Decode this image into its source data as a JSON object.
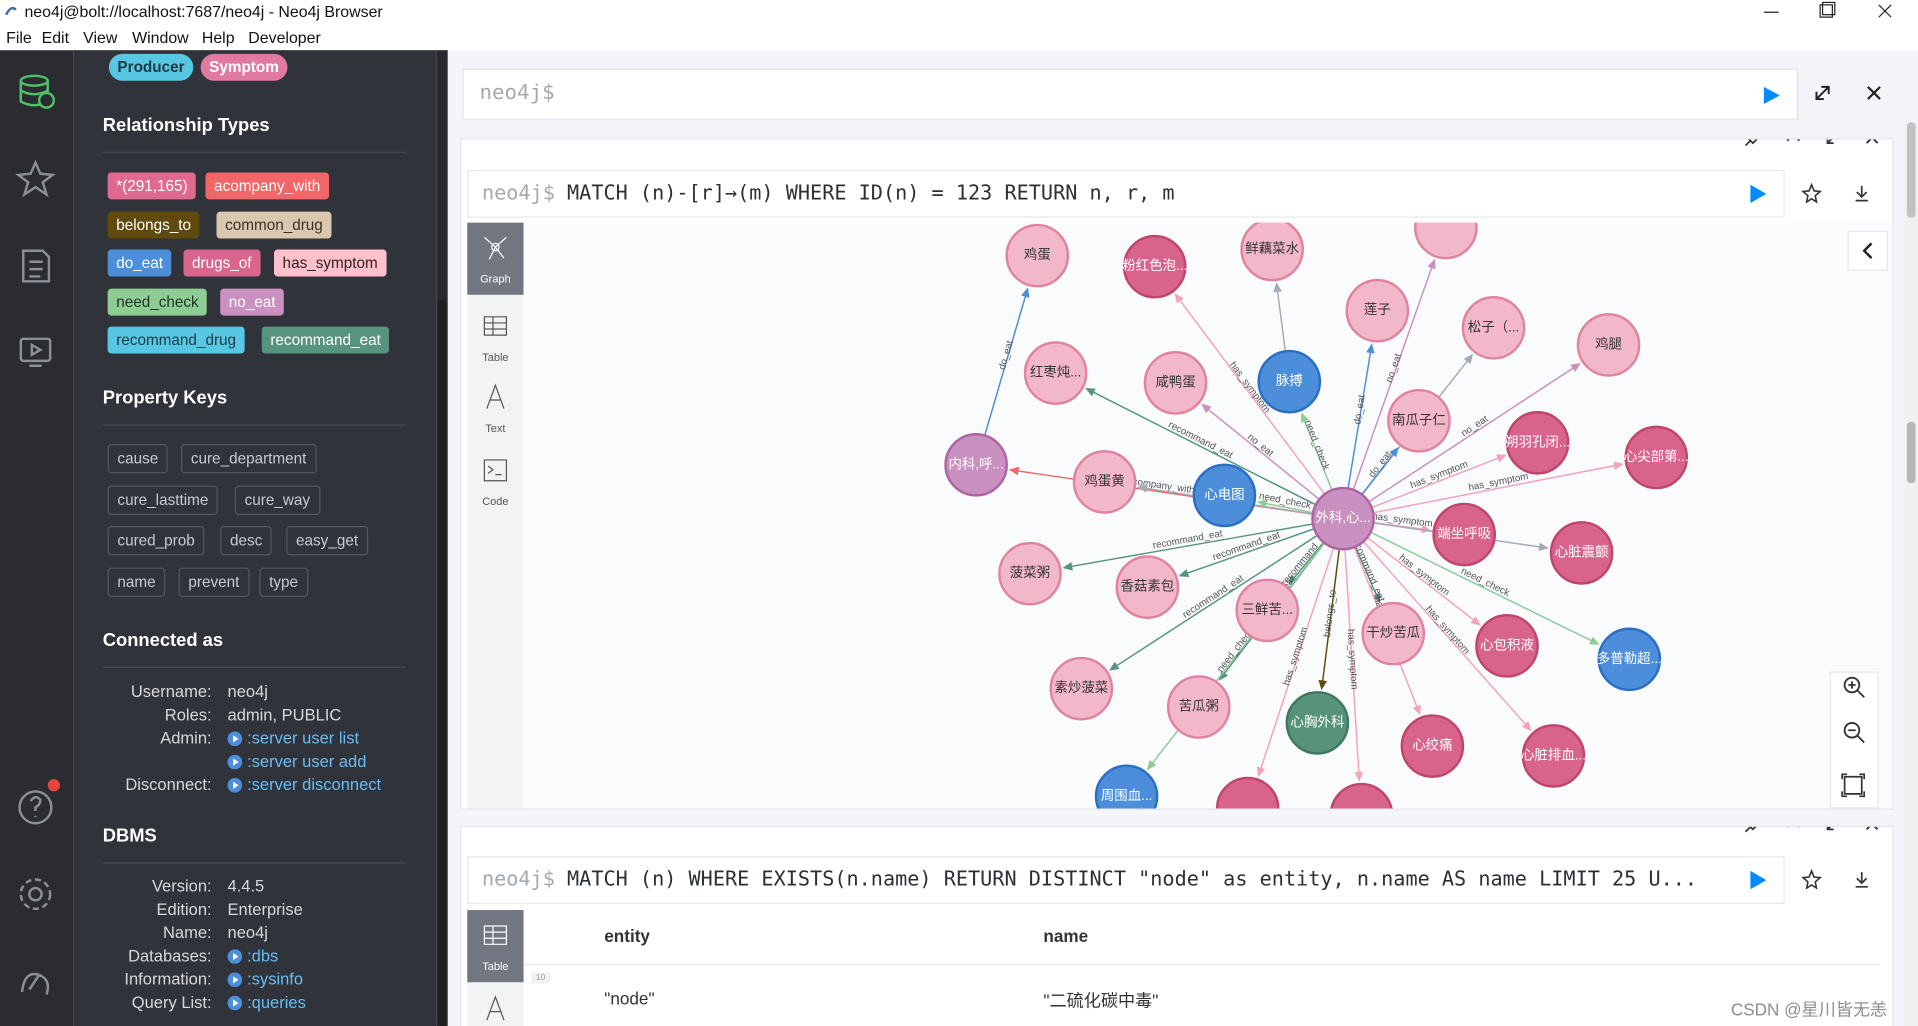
{
  "window": {
    "title": "neo4j@bolt://localhost:7687/neo4j - Neo4j Browser",
    "menu": [
      "File",
      "Edit",
      "View",
      "Window",
      "Help",
      "Developer"
    ]
  },
  "sidebar": {
    "node_labels": [
      "Producer",
      "Symptom"
    ],
    "relationship_types": {
      "title": "Relationship Types",
      "items": [
        "*(291,165)",
        "acompany_with",
        "belongs_to",
        "common_drug",
        "do_eat",
        "drugs_of",
        "has_symptom",
        "need_check",
        "no_eat",
        "recommand_drug",
        "recommand_eat"
      ]
    },
    "property_keys": {
      "title": "Property Keys",
      "items": [
        "cause",
        "cure_department",
        "cure_lasttime",
        "cure_way",
        "cured_prob",
        "desc",
        "easy_get",
        "name",
        "prevent",
        "type"
      ]
    },
    "connected_as": {
      "title": "Connected as",
      "rows": [
        {
          "label": "Username:",
          "values": [
            "neo4j"
          ]
        },
        {
          "label": "Roles:",
          "values": [
            "admin, PUBLIC"
          ]
        },
        {
          "label": "Admin:",
          "links": [
            ":server user list",
            ":server user add"
          ]
        },
        {
          "label": "Disconnect:",
          "links": [
            ":server disconnect"
          ]
        }
      ]
    },
    "dbms": {
      "title": "DBMS",
      "rows": [
        {
          "label": "Version:",
          "values": [
            "4.4.5"
          ]
        },
        {
          "label": "Edition:",
          "values": [
            "Enterprise"
          ]
        },
        {
          "label": "Name:",
          "values": [
            "neo4j"
          ]
        },
        {
          "label": "Databases:",
          "links": [
            ":dbs"
          ]
        },
        {
          "label": "Information:",
          "links": [
            ":sysinfo"
          ]
        },
        {
          "label": "Query List:",
          "links": [
            ":queries"
          ]
        }
      ]
    }
  },
  "editor": {
    "prompt": "neo4j$"
  },
  "frames": [
    {
      "prompt": "neo4j$",
      "query": "MATCH (n)-[r]→(m) WHERE ID(n) = 123 RETURN n, r, m",
      "views": [
        "Graph",
        "Table",
        "Text",
        "Code"
      ],
      "nodes": [
        {
          "label": "外科,心..."
        },
        {
          "label": "鸡蛋",
          "rel": "do_eat"
        },
        {
          "label": "粉红色泡...",
          "rel": "has_symptom"
        },
        {
          "label": "鲜藕菜水"
        },
        {
          "label": null,
          "rel": "no_eat"
        },
        {
          "label": "莲子",
          "rel": "do_eat"
        },
        {
          "label": "松子（..."
        },
        {
          "label": "鸡腿",
          "rel": "no_eat"
        },
        {
          "label": "红枣炖...",
          "rel": "recommand_eat"
        },
        {
          "label": "咸鸭蛋",
          "rel": "no_eat"
        },
        {
          "label": "脉搏",
          "rel": "need_check"
        },
        {
          "label": "南瓜子仁",
          "rel": "do_eat"
        },
        {
          "label": "朔羽孔闭...",
          "rel": "has_symptom"
        },
        {
          "label": "内科,呼...",
          "rel": "acompany_with"
        },
        {
          "label": "心尖部第...",
          "rel": "has_symptom"
        },
        {
          "label": "鸡蛋黄"
        },
        {
          "label": "心电图",
          "rel": "need_check"
        },
        {
          "label": "端坐呼吸",
          "rel": "has_symptom"
        },
        {
          "label": "心脏震颤"
        },
        {
          "label": "菠菜粥",
          "rel": "recommand_eat"
        },
        {
          "label": "香菇素包",
          "rel": "recommand_eat"
        },
        {
          "label": "三鲜苦...",
          "rel": "recommand_eat"
        },
        {
          "label": "干炒苦瓜",
          "rel": "recommand_eat"
        },
        {
          "label": "心包积液",
          "rel": "has_symptom"
        },
        {
          "label": "多普勒超...",
          "rel": "need_check"
        },
        {
          "label": "素炒菠菜",
          "rel": "recommand_eat"
        },
        {
          "label": "苦瓜粥",
          "rel": "recommand_eat"
        },
        {
          "label": "心胸外科",
          "rel": "belongs_to"
        },
        {
          "label": "心绞痛",
          "rel": "has_symptom"
        },
        {
          "label": "心脏排血...",
          "rel": "has_symptom"
        },
        {
          "label": "周围血...",
          "rel": "need_check"
        },
        {
          "label": null,
          "rel": "has_symptom"
        },
        {
          "label": null,
          "rel": "has_symptom"
        }
      ]
    },
    {
      "prompt": "neo4j$",
      "query": "MATCH (n) WHERE EXISTS(n.name) RETURN DISTINCT \"node\" as entity, n.name AS name LIMIT 25 U...",
      "views": [
        "Table"
      ],
      "columns": [
        "entity",
        "name"
      ],
      "rows": [
        {
          "marker": "10",
          "cells": [
            "\"node\"",
            "\"二硫化碳中毒\""
          ]
        }
      ]
    }
  ],
  "watermark": "CSDN @星川皆无恙"
}
